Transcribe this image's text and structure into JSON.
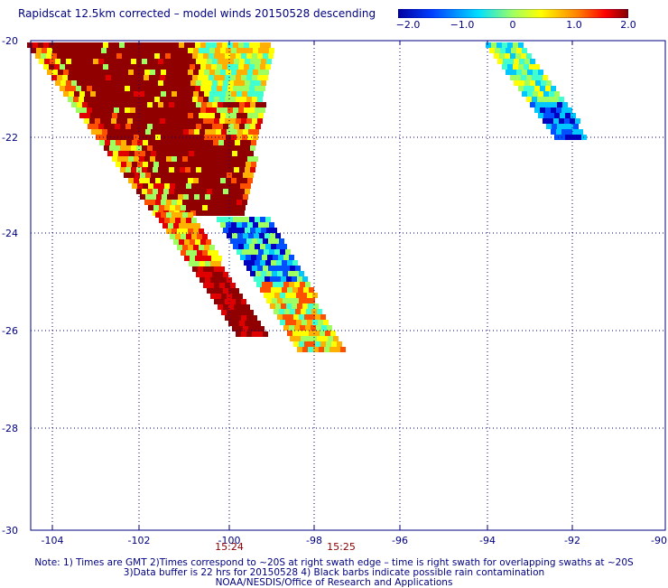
{
  "title": "Rapidscat 12.5km corrected – model winds 20150528 descending",
  "colorbar": {
    "labels": [
      "−2.0",
      "−1.0",
      "0",
      "1.0",
      "2.0"
    ],
    "values": [
      -2.0,
      -1.0,
      0,
      1.0,
      2.0
    ],
    "colors": [
      "#0000b0",
      "#0060ff",
      "#00e0e0",
      "#80ff80",
      "#ffff00",
      "#ff9000",
      "#ff0000",
      "#800000"
    ]
  },
  "map": {
    "lon_ticks": [
      "-104",
      "-102",
      "-100",
      "-98",
      "-96",
      "-94",
      "-92",
      "-90"
    ],
    "lat_ticks": [
      "-20",
      "-22",
      "-24",
      "-26",
      "-28",
      "-30"
    ],
    "lon_range": [
      -105,
      -90
    ],
    "lat_range": [
      -30,
      -20
    ],
    "times": [
      {
        "label": "15:24",
        "lon": -100
      },
      {
        "label": "15:25",
        "lon": -97.5
      }
    ]
  },
  "notes": [
    "Note: 1) Times are GMT 2)Times correspond to ~20S at right swath edge – time is right swath for overlapping swaths at ~20S",
    "3)Data buffer is 22 hrs for 20150528 4) Black barbs indicate possible rain contamination",
    "NOAA/NESDIS/Office of Research and Applications"
  ]
}
